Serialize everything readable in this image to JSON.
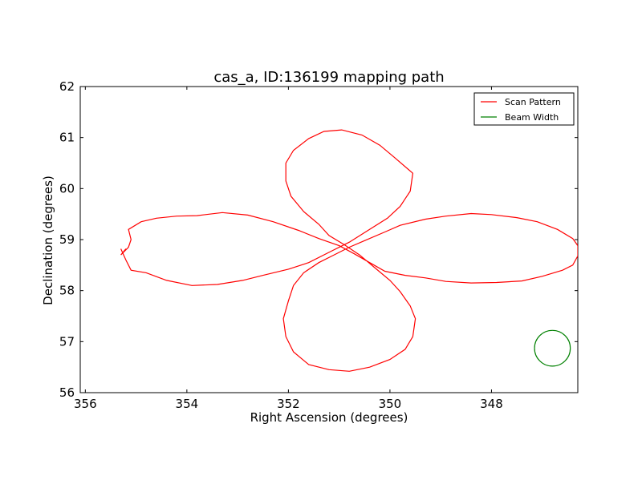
{
  "chart_data": {
    "type": "line",
    "title": "cas_a, ID:136199 mapping path",
    "xlabel": "Right Ascension (degrees)",
    "ylabel": "Declination (degrees)",
    "xlim": [
      356.1,
      346.3
    ],
    "ylim": [
      56,
      62
    ],
    "x_inverted": true,
    "xticks": [
      356,
      354,
      352,
      350,
      348
    ],
    "xtick_labels": [
      "356",
      "354",
      "352",
      "350",
      "348"
    ],
    "yticks": [
      56,
      57,
      58,
      59,
      60,
      61,
      62
    ],
    "ytick_labels": [
      "56",
      "57",
      "58",
      "59",
      "60",
      "61",
      "62"
    ],
    "grid": false,
    "legend": {
      "placement": "top-right",
      "entries": [
        {
          "label": "Scan Pattern",
          "color": "#ff0000"
        },
        {
          "label": "Beam Width",
          "color": "#008000"
        }
      ]
    },
    "series": [
      {
        "name": "Scan Pattern",
        "color": "#ff0000",
        "points": [
          [
            355.2,
            58.82
          ],
          [
            355.3,
            58.7
          ],
          [
            355.15,
            58.85
          ],
          [
            355.1,
            59.0
          ],
          [
            355.15,
            59.2
          ],
          [
            354.9,
            59.35
          ],
          [
            354.6,
            59.42
          ],
          [
            354.2,
            59.46
          ],
          [
            353.8,
            59.47
          ],
          [
            353.3,
            59.53
          ],
          [
            352.8,
            59.48
          ],
          [
            352.3,
            59.35
          ],
          [
            351.8,
            59.18
          ],
          [
            351.4,
            59.02
          ],
          [
            351.0,
            58.88
          ],
          [
            350.7,
            58.72
          ],
          [
            350.4,
            58.55
          ],
          [
            350.1,
            58.38
          ],
          [
            349.7,
            58.3
          ],
          [
            349.3,
            58.25
          ],
          [
            348.9,
            58.18
          ],
          [
            348.4,
            58.15
          ],
          [
            347.9,
            58.16
          ],
          [
            347.4,
            58.19
          ],
          [
            347.0,
            58.28
          ],
          [
            346.6,
            58.4
          ],
          [
            346.4,
            58.5
          ],
          [
            346.3,
            58.68
          ],
          [
            346.3,
            58.88
          ],
          [
            346.4,
            59.02
          ],
          [
            346.7,
            59.2
          ],
          [
            347.1,
            59.35
          ],
          [
            347.5,
            59.43
          ],
          [
            348.0,
            59.49
          ],
          [
            348.4,
            59.51
          ],
          [
            348.9,
            59.46
          ],
          [
            349.3,
            59.4
          ],
          [
            349.8,
            59.28
          ],
          [
            350.1,
            59.15
          ],
          [
            350.5,
            58.98
          ],
          [
            350.8,
            58.85
          ],
          [
            351.1,
            58.7
          ],
          [
            351.4,
            58.55
          ],
          [
            351.7,
            58.35
          ],
          [
            351.9,
            58.1
          ],
          [
            352.0,
            57.8
          ],
          [
            352.1,
            57.45
          ],
          [
            352.05,
            57.1
          ],
          [
            351.9,
            56.8
          ],
          [
            351.6,
            56.55
          ],
          [
            351.2,
            56.45
          ],
          [
            350.8,
            56.42
          ],
          [
            350.4,
            56.5
          ],
          [
            350.0,
            56.65
          ],
          [
            349.7,
            56.85
          ],
          [
            349.55,
            57.1
          ],
          [
            349.5,
            57.45
          ],
          [
            349.6,
            57.7
          ],
          [
            349.8,
            57.98
          ],
          [
            350.0,
            58.2
          ],
          [
            350.3,
            58.45
          ],
          [
            350.6,
            58.7
          ],
          [
            350.9,
            58.9
          ],
          [
            351.2,
            59.08
          ],
          [
            351.4,
            59.3
          ],
          [
            351.7,
            59.55
          ],
          [
            351.95,
            59.85
          ],
          [
            352.05,
            60.15
          ],
          [
            352.05,
            60.5
          ],
          [
            351.9,
            60.75
          ],
          [
            351.6,
            60.98
          ],
          [
            351.3,
            61.12
          ],
          [
            350.95,
            61.15
          ],
          [
            350.55,
            61.05
          ],
          [
            350.2,
            60.85
          ],
          [
            349.9,
            60.6
          ],
          [
            349.55,
            60.3
          ],
          [
            349.6,
            59.95
          ],
          [
            349.8,
            59.65
          ],
          [
            350.05,
            59.42
          ],
          [
            350.4,
            59.2
          ],
          [
            350.8,
            58.95
          ],
          [
            351.2,
            58.75
          ],
          [
            351.6,
            58.55
          ],
          [
            352.0,
            58.42
          ],
          [
            352.5,
            58.3
          ],
          [
            352.9,
            58.2
          ],
          [
            353.4,
            58.12
          ],
          [
            353.9,
            58.1
          ],
          [
            354.4,
            58.2
          ],
          [
            354.8,
            58.35
          ],
          [
            355.1,
            58.4
          ],
          [
            355.2,
            58.6
          ],
          [
            355.3,
            58.82
          ]
        ]
      },
      {
        "name": "Beam Width",
        "color": "#008000",
        "circle": {
          "center": [
            346.8,
            56.87
          ],
          "radius_deg": 0.35
        }
      }
    ]
  }
}
